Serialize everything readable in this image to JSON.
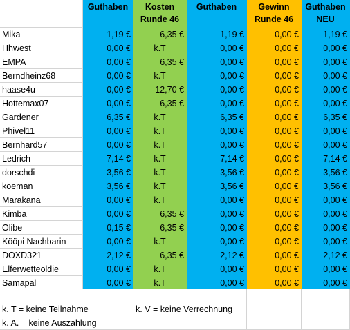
{
  "headers": [
    {
      "lines": [
        "Guthaben"
      ]
    },
    {
      "lines": [
        "Kosten",
        "Runde 46"
      ]
    },
    {
      "lines": [
        "Guthaben"
      ]
    },
    {
      "lines": [
        "Gewinn",
        "Runde 46"
      ]
    },
    {
      "lines": [
        "Guthaben",
        "NEU"
      ]
    }
  ],
  "colors": {
    "blue": "#00b0f0",
    "green": "#92d050",
    "orange": "#ffc000"
  },
  "rows": [
    {
      "name": "Mika",
      "cells": [
        "1,19 €",
        "6,35 €",
        "1,19 €",
        "0,00 €",
        "1,19 €"
      ]
    },
    {
      "name": "Hhwest",
      "cells": [
        "0,00 €",
        "k.T",
        "0,00 €",
        "0,00 €",
        "0,00 €"
      ]
    },
    {
      "name": "EMPA",
      "cells": [
        "0,00 €",
        "6,35 €",
        "0,00 €",
        "0,00 €",
        "0,00 €"
      ]
    },
    {
      "name": "Berndheinz68",
      "cells": [
        "0,00 €",
        "k.T",
        "0,00 €",
        "0,00 €",
        "0,00 €"
      ]
    },
    {
      "name": "haase4u",
      "cells": [
        "0,00 €",
        "12,70 €",
        "0,00 €",
        "0,00 €",
        "0,00 €"
      ]
    },
    {
      "name": "Hottemax07",
      "cells": [
        "0,00 €",
        "6,35 €",
        "0,00 €",
        "0,00 €",
        "0,00 €"
      ]
    },
    {
      "name": "Gardener",
      "cells": [
        "6,35 €",
        "k.T",
        "6,35 €",
        "0,00 €",
        "6,35 €"
      ]
    },
    {
      "name": "Phivel11",
      "cells": [
        "0,00 €",
        "k.T",
        "0,00 €",
        "0,00 €",
        "0,00 €"
      ]
    },
    {
      "name": "Bernhard57",
      "cells": [
        "0,00 €",
        "k.T",
        "0,00 €",
        "0,00 €",
        "0,00 €"
      ]
    },
    {
      "name": "Ledrich",
      "cells": [
        "7,14 €",
        "k.T",
        "7,14 €",
        "0,00 €",
        "7,14 €"
      ]
    },
    {
      "name": "dorschdi",
      "cells": [
        "3,56 €",
        "k.T",
        "3,56 €",
        "0,00 €",
        "3,56 €"
      ]
    },
    {
      "name": "koeman",
      "cells": [
        "3,56 €",
        "k.T",
        "3,56 €",
        "0,00 €",
        "3,56 €"
      ]
    },
    {
      "name": "Marakana",
      "cells": [
        "0,00 €",
        "k.T",
        "0,00 €",
        "0,00 €",
        "0,00 €"
      ]
    },
    {
      "name": "Kimba",
      "cells": [
        "0,00 €",
        "6,35 €",
        "0,00 €",
        "0,00 €",
        "0,00 €"
      ]
    },
    {
      "name": "Olibe",
      "cells": [
        "0,15 €",
        "6,35 €",
        "0,00 €",
        "0,00 €",
        "0,00 €"
      ]
    },
    {
      "name": "Kööpi Nachbarin",
      "cells": [
        "0,00 €",
        "k.T",
        "0,00 €",
        "0,00 €",
        "0,00 €"
      ]
    },
    {
      "name": "DOXD321",
      "cells": [
        "2,12 €",
        "6,35 €",
        "2,12 €",
        "0,00 €",
        "2,12 €"
      ]
    },
    {
      "name": "Elferwetteoldie",
      "cells": [
        "0,00 €",
        "k.T",
        "0,00 €",
        "0,00 €",
        "0,00 €"
      ]
    },
    {
      "name": "Samapal",
      "cells": [
        "0,00 €",
        "k.T",
        "0,00 €",
        "0,00 €",
        "0,00 €"
      ]
    }
  ],
  "legend": {
    "kt": "k. T = keine Teilnahme",
    "kv": "k. V = keine Verrechnung",
    "ka": "k. A. = keine Auszahlung"
  }
}
